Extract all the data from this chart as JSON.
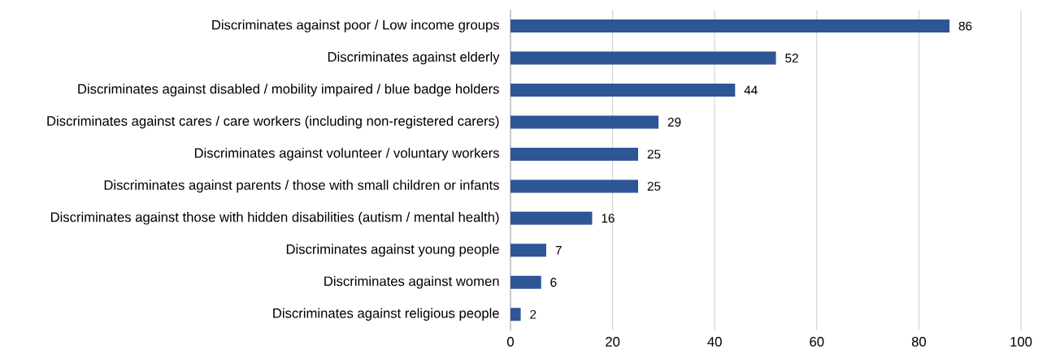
{
  "chart_data": {
    "type": "bar",
    "orientation": "horizontal",
    "categories": [
      "Discriminates against poor / Low income groups",
      "Discriminates against elderly",
      "Discriminates against disabled / mobility impaired / blue badge holders",
      "Discriminates against cares / care workers (including non-registered carers)",
      "Discriminates against volunteer / voluntary workers",
      "Discriminates against parents / those with small children or infants",
      "Discriminates against those with hidden disabilities (autism / mental health)",
      "Discriminates against young people",
      "Discriminates against women",
      "Discriminates against religious people"
    ],
    "values": [
      86,
      52,
      44,
      29,
      25,
      25,
      16,
      7,
      6,
      2
    ],
    "color": "#2f5597",
    "data_labels": true,
    "grid": "x",
    "xlim": [
      0,
      100
    ],
    "xticks": [
      0,
      20,
      40,
      60,
      80,
      100
    ]
  }
}
